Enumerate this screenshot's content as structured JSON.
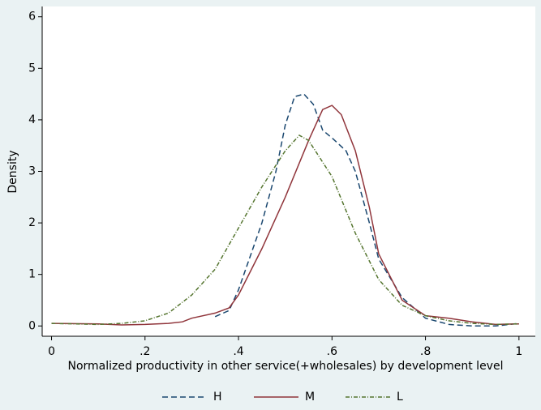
{
  "chart_data": {
    "type": "line",
    "xlabel": "Normalized productivity in other service(+wholesales) by development level",
    "ylabel": "Density",
    "xlim": [
      -0.02,
      1.035
    ],
    "ylim": [
      -0.2,
      6.2
    ],
    "xticks": [
      0,
      {
        "value": 0.2,
        "label": ".2"
      },
      {
        "value": 0.4,
        "label": ".4"
      },
      {
        "value": 0.6,
        "label": ".6"
      },
      {
        "value": 0.8,
        "label": ".8"
      },
      1
    ],
    "yticks": [
      0,
      1,
      2,
      3,
      4,
      5,
      6
    ],
    "series": [
      {
        "name": "H",
        "color": "#1a476f",
        "style": "dashed",
        "x": [
          0.35,
          0.38,
          0.4,
          0.45,
          0.48,
          0.5,
          0.52,
          0.54,
          0.56,
          0.58,
          0.6,
          0.63,
          0.65,
          0.68,
          0.7,
          0.75,
          0.8,
          0.85,
          0.9,
          0.95,
          1.0
        ],
        "values": [
          0.18,
          0.3,
          0.7,
          2.0,
          3.0,
          3.9,
          4.45,
          4.5,
          4.3,
          3.8,
          3.65,
          3.4,
          3.0,
          2.0,
          1.3,
          0.55,
          0.15,
          0.03,
          0.0,
          0.0,
          0.05
        ]
      },
      {
        "name": "M",
        "color": "#90353b",
        "style": "solid",
        "x": [
          0,
          0.1,
          0.15,
          0.2,
          0.25,
          0.28,
          0.3,
          0.35,
          0.38,
          0.4,
          0.45,
          0.5,
          0.55,
          0.58,
          0.6,
          0.62,
          0.65,
          0.68,
          0.7,
          0.75,
          0.8,
          0.85,
          0.9,
          0.95,
          1.0
        ],
        "values": [
          0.05,
          0.04,
          0.02,
          0.03,
          0.05,
          0.08,
          0.15,
          0.25,
          0.35,
          0.6,
          1.5,
          2.5,
          3.6,
          4.2,
          4.28,
          4.1,
          3.4,
          2.3,
          1.4,
          0.5,
          0.2,
          0.15,
          0.08,
          0.03,
          0.04
        ]
      },
      {
        "name": "L",
        "color": "#55752f",
        "style": "dash-dot",
        "x": [
          0,
          0.1,
          0.15,
          0.2,
          0.25,
          0.3,
          0.35,
          0.4,
          0.45,
          0.5,
          0.53,
          0.55,
          0.6,
          0.65,
          0.7,
          0.75,
          0.8,
          0.85,
          0.9,
          0.95,
          1.0
        ],
        "values": [
          0.05,
          0.03,
          0.05,
          0.1,
          0.25,
          0.6,
          1.1,
          1.9,
          2.7,
          3.4,
          3.7,
          3.6,
          2.9,
          1.8,
          0.9,
          0.4,
          0.2,
          0.1,
          0.05,
          0.03,
          0.04
        ]
      }
    ]
  }
}
